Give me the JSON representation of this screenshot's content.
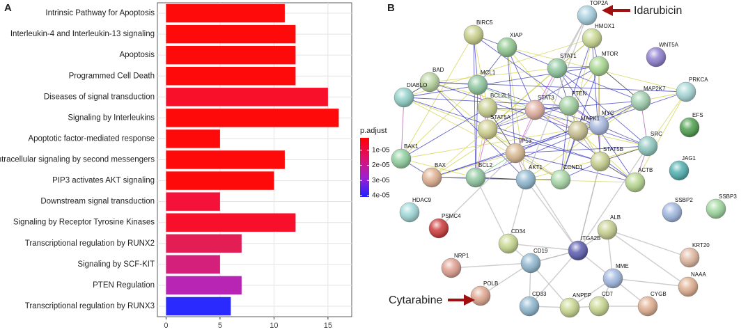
{
  "chart_data": {
    "type": "bar",
    "orientation": "horizontal",
    "panel_label": "A",
    "categories": [
      "Intrinsic Pathway for Apoptosis",
      "Interleukin-4 and Interleukin-13 signaling",
      "Apoptosis",
      "Programmed Cell Death",
      "Diseases of signal transduction",
      "Signaling by Interleukins",
      "Apoptotic factor-mediated response",
      "Intracellular signaling by second messengers",
      "PIP3 activates AKT signaling",
      "Downstream signal transduction",
      "Signaling by Receptor Tyrosine Kinases",
      "Transcriptional regulation by RUNX2",
      "Signaling by SCF-KIT",
      "PTEN Regulation",
      "Transcriptional regulation by RUNX3"
    ],
    "values": [
      11,
      12,
      12,
      12,
      15,
      16,
      5,
      11,
      10,
      5,
      12,
      7,
      5,
      7,
      6
    ],
    "colors": [
      "#ff0a0a",
      "#ff0a0a",
      "#ff0a0a",
      "#ff0a0a",
      "#f8102a",
      "#ff0a0a",
      "#ff0a0a",
      "#ff0a0a",
      "#ff0a0a",
      "#f5123a",
      "#f8102a",
      "#e21e55",
      "#d4207a",
      "#b824b4",
      "#2a2aff"
    ],
    "xlim": [
      -0.8,
      17.2
    ],
    "xticks": [
      0,
      5,
      10,
      15
    ],
    "grid": true,
    "colorbar": {
      "title": "p.adjust",
      "lim": [
        1.7e-06,
        4.1e-05
      ],
      "ticks": [
        {
          "value": 1e-05,
          "label": "1e-05"
        },
        {
          "value": 2e-05,
          "label": "2e-05"
        },
        {
          "value": 3e-05,
          "label": "3e-05"
        },
        {
          "value": 4e-05,
          "label": "4e-05"
        }
      ],
      "colors": [
        "#ff0000",
        "#e0106a",
        "#a020d0",
        "#2020ff"
      ]
    }
  },
  "network": {
    "panel_label": "B",
    "nodes": [
      {
        "label": "BIRC5",
        "color": "#c8d08a"
      },
      {
        "label": "TOP2A",
        "color": "#a8d0e0"
      },
      {
        "label": "HMOX1",
        "color": "#c8d890"
      },
      {
        "label": "XIAP",
        "color": "#90c890"
      },
      {
        "label": "WNT5A",
        "color": "#8f7fd0"
      },
      {
        "label": "STAT1",
        "color": "#90c8a0"
      },
      {
        "label": "MTOR",
        "color": "#a8d890"
      },
      {
        "label": "BAD",
        "color": "#b8d4a0"
      },
      {
        "label": "MCL1",
        "color": "#90c8a0"
      },
      {
        "label": "PRKCA",
        "color": "#a8d8d8"
      },
      {
        "label": "DIABLO",
        "color": "#90d0c8"
      },
      {
        "label": "MAP2K7",
        "color": "#a0d0b0"
      },
      {
        "label": "BCL2L1",
        "color": "#c8d090"
      },
      {
        "label": "STAT3",
        "color": "#e0b0a0"
      },
      {
        "label": "PTEN",
        "color": "#a0d0a0"
      },
      {
        "label": "EFS",
        "color": "#4f9f4f"
      },
      {
        "label": "MYC",
        "color": "#a8b8e0"
      },
      {
        "label": "MAPK1",
        "color": "#c8c090"
      },
      {
        "label": "STAT5A",
        "color": "#d0d090"
      },
      {
        "label": "SRC",
        "color": "#90c8c0"
      },
      {
        "label": "BAK1",
        "color": "#90d0a0"
      },
      {
        "label": "TP53",
        "color": "#d8b890"
      },
      {
        "label": "STAT5B",
        "color": "#c8d090"
      },
      {
        "label": "BAX",
        "color": "#e0b090"
      },
      {
        "label": "BCL2",
        "color": "#90c8a0"
      },
      {
        "label": "AKT1",
        "color": "#90b8d0"
      },
      {
        "label": "CCND1",
        "color": "#a8d8a8"
      },
      {
        "label": "ACTB",
        "color": "#b8d890"
      },
      {
        "label": "JAG1",
        "color": "#50b0b0"
      },
      {
        "label": "HDAC9",
        "color": "#a0d8d8"
      },
      {
        "label": "SSBP2",
        "color": "#a0b8e0"
      },
      {
        "label": "SSBP3",
        "color": "#a0d8a0"
      },
      {
        "label": "PSMC4",
        "color": "#cc3a3a"
      },
      {
        "label": "CD34",
        "color": "#c8d890"
      },
      {
        "label": "ALB",
        "color": "#c8d090"
      },
      {
        "label": "ITGA2B",
        "color": "#5c5cb0"
      },
      {
        "label": "CD19",
        "color": "#90b8d0"
      },
      {
        "label": "NRP1",
        "color": "#e0a090"
      },
      {
        "label": "KRT20",
        "color": "#e0b8a0"
      },
      {
        "label": "MME",
        "color": "#a0b8e0"
      },
      {
        "label": "NAAA",
        "color": "#e0b090"
      },
      {
        "label": "POLB",
        "color": "#e0a890"
      },
      {
        "label": "CD33",
        "color": "#90b8d0"
      },
      {
        "label": "ANPEP",
        "color": "#c8d890"
      },
      {
        "label": "CD7",
        "color": "#c8d890"
      },
      {
        "label": "CYGB",
        "color": "#e0b090"
      }
    ],
    "annotations": [
      "Idarubicin",
      "Cytarabine"
    ]
  }
}
